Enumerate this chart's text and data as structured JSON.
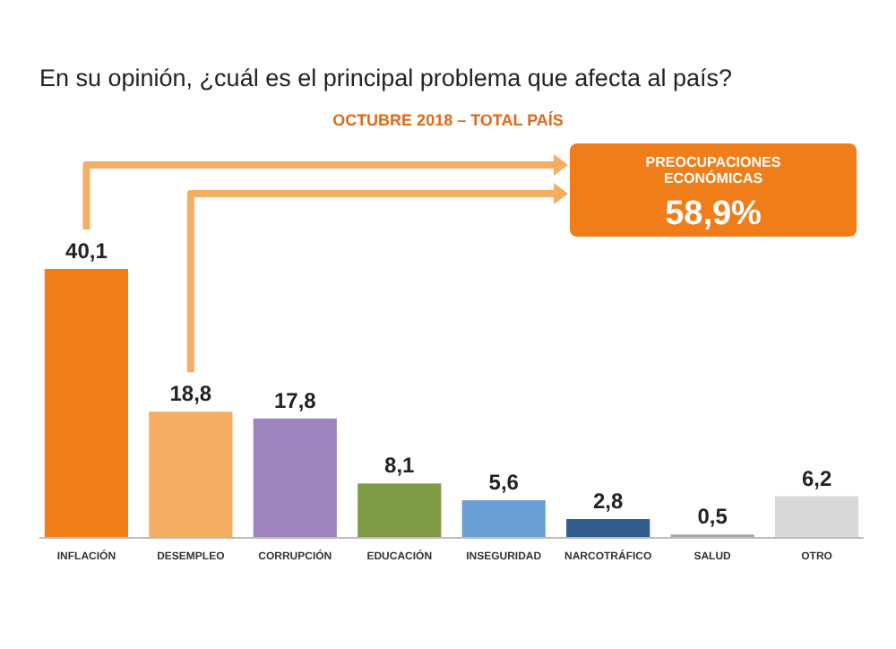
{
  "chart_data": {
    "type": "bar",
    "title": "En su opinión, ¿cuál es el principal problema que afecta al país?",
    "subtitle": "OCTUBRE 2018 – TOTAL PAÍS",
    "categories": [
      "INFLACIÓN",
      "DESEMPLEO",
      "CORRUPCIÓN",
      "EDUCACIÓN",
      "INSEGURIDAD",
      "NARCOTRÁFICO",
      "SALUD",
      "OTRO"
    ],
    "values": [
      40.1,
      18.8,
      17.8,
      8.1,
      5.6,
      2.8,
      0.5,
      6.2
    ],
    "value_labels": [
      "40,1",
      "18,8",
      "17,8",
      "8,1",
      "5,6",
      "2,8",
      "0,5",
      "6,2"
    ],
    "colors": [
      "#ef7d1a",
      "#f5ad62",
      "#9d84bd",
      "#7f9b45",
      "#6a9fd4",
      "#2e5d8c",
      "#a6a6a6",
      "#d9d9d9"
    ],
    "annotations": [
      "PREOCUPACIONES ECONÓMICAS",
      "58,9%"
    ]
  }
}
